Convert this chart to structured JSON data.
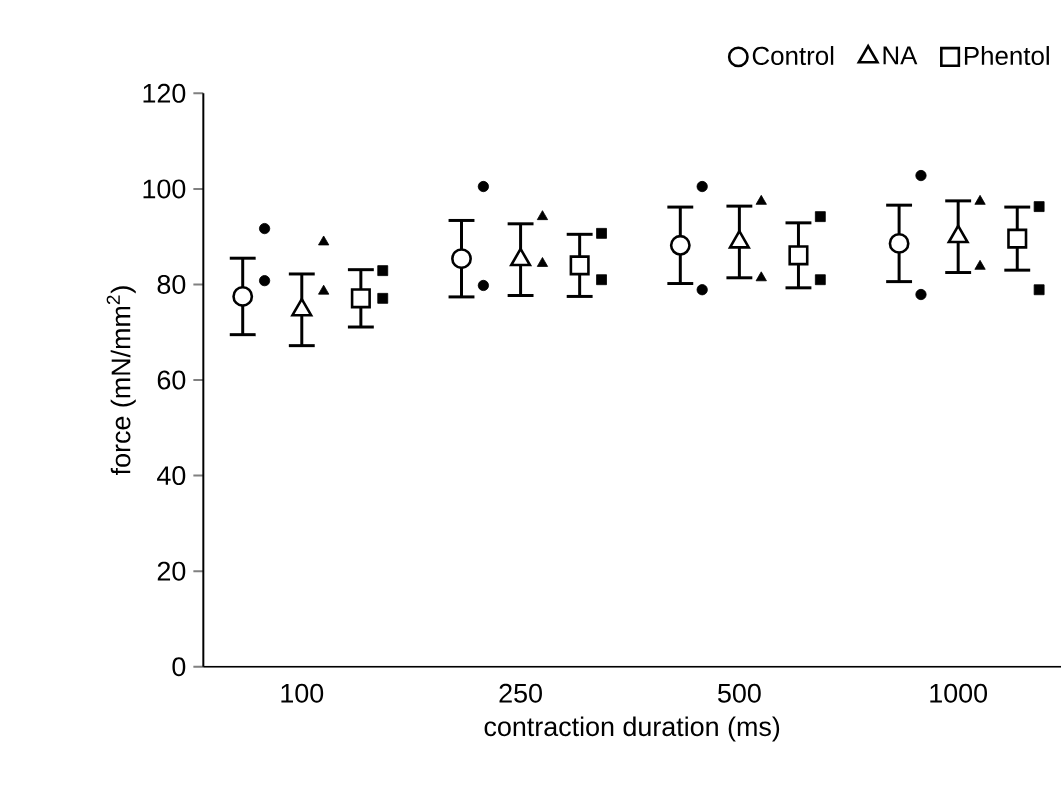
{
  "chart_data": {
    "type": "scatter",
    "xlabel": "contraction duration (ms)",
    "ylabel": "force (mN/mm$^{2}$)",
    "categories": [
      "100",
      "250",
      "500",
      "1000"
    ],
    "ylim": [
      0,
      120
    ],
    "yticks": [
      0,
      20,
      40,
      60,
      80,
      100,
      120
    ],
    "legend": "top right",
    "series": [
      {
        "name": "Control",
        "color": "#000000",
        "marker": "circle",
        "values": [
          77.5,
          85.4,
          88.2,
          88.6
        ],
        "errors": [
          8,
          8,
          8,
          8
        ]
      },
      {
        "name": "NA",
        "color": "#000000",
        "marker": "triangle",
        "values": [
          74.7,
          85.2,
          88.9,
          90
        ],
        "errors": [
          7.5,
          7.5,
          7.5,
          7.5
        ]
      },
      {
        "name": "Phentol",
        "color": "#000000",
        "marker": "square",
        "values": [
          77.1,
          84,
          86.1,
          89.6
        ],
        "errors": [
          6,
          6.5,
          6.8,
          6.6
        ]
      },
      {
        "color": "#000000",
        "marker": "circle",
        "values": [
          91.7,
          100.5,
          100.5,
          102.8
        ]
      },
      {
        "color": "#000000",
        "marker": "circle",
        "values": [
          80.8,
          79.8,
          78.9,
          77.9
        ]
      },
      {
        "color": "#000000",
        "marker": "triangle",
        "values": [
          88.9,
          94.2,
          97.4,
          97.4
        ]
      },
      {
        "color": "#000000",
        "marker": "triangle",
        "values": [
          78.6,
          84.4,
          81.4,
          83.8
        ]
      },
      {
        "color": "#000000",
        "marker": "square",
        "values": [
          82.9,
          90.7,
          94.2,
          96.3
        ]
      },
      {
        "color": "#000000",
        "marker": "square",
        "values": [
          77.1,
          81,
          81,
          78.9
        ]
      }
    ]
  }
}
